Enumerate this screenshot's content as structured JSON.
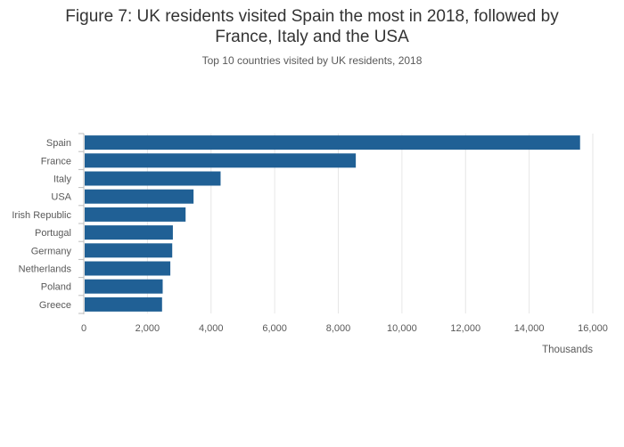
{
  "header": {
    "title": "Figure 7: UK residents visited Spain the most in 2018, followed by France, Italy and the USA",
    "subtitle": "Top 10 countries visited by UK residents, 2018"
  },
  "chart_data": {
    "type": "bar",
    "orientation": "horizontal",
    "title": "Figure 7: UK residents visited Spain the most in 2018, followed by France, Italy and the USA",
    "subtitle": "Top 10 countries visited by UK residents, 2018",
    "categories": [
      "Spain",
      "France",
      "Italy",
      "USA",
      "Irish Republic",
      "Portugal",
      "Germany",
      "Netherlands",
      "Poland",
      "Greece"
    ],
    "values": [
      15600,
      8550,
      4300,
      3450,
      3200,
      2800,
      2780,
      2720,
      2480,
      2460
    ],
    "xlabel": "Thousands",
    "ylabel": "",
    "xlim": [
      0,
      16000
    ],
    "xticks": [
      0,
      2000,
      4000,
      6000,
      8000,
      10000,
      12000,
      14000,
      16000
    ],
    "xtick_labels": [
      "0",
      "2,000",
      "4,000",
      "6,000",
      "8,000",
      "10,000",
      "12,000",
      "14,000",
      "16,000"
    ],
    "grid": "vertical",
    "bar_color": "#206095",
    "grid_color": "#e6e6e6",
    "axis_color": "#bebebe"
  }
}
